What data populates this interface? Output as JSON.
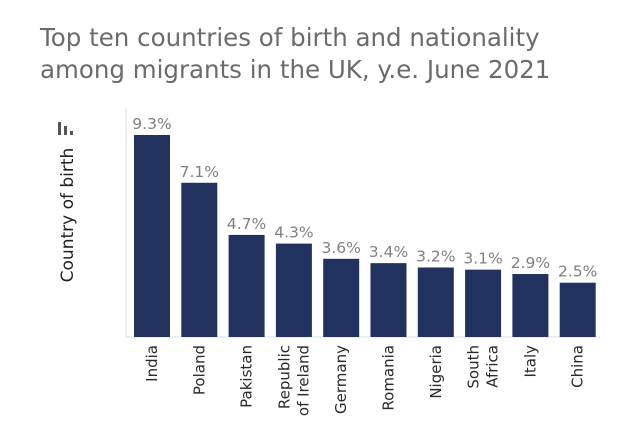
{
  "header": {
    "title": "Top ten countries of birth and nationality among migrants in the UK, y.e. June 2021"
  },
  "chart_data": {
    "type": "bar",
    "title": "Top ten countries of birth and nationality among migrants in the UK, y.e. June 2021",
    "ylabel": "Country of birth",
    "xlabel": "",
    "categories": [
      "India",
      "Poland",
      "Pakistan",
      "Republic of Ireland",
      "Germany",
      "Romania",
      "Nigeria",
      "South Africa",
      "Italy",
      "China"
    ],
    "category_lines": [
      [
        "India"
      ],
      [
        "Poland"
      ],
      [
        "Pakistan"
      ],
      [
        "Republic",
        "of Ireland"
      ],
      [
        "Germany"
      ],
      [
        "Romania"
      ],
      [
        "Nigeria"
      ],
      [
        "South",
        "Africa"
      ],
      [
        "Italy"
      ],
      [
        "China"
      ]
    ],
    "values": [
      9.3,
      7.1,
      4.7,
      4.3,
      3.6,
      3.4,
      3.2,
      3.1,
      2.9,
      2.5
    ],
    "value_labels": [
      "9.3%",
      "7.1%",
      "4.7%",
      "4.3%",
      "3.6%",
      "3.4%",
      "3.2%",
      "3.1%",
      "2.9%",
      "2.5%"
    ],
    "unit": "%",
    "ylim": [
      0,
      9.3
    ],
    "bar_color": "#21325e",
    "grid": false,
    "legend": "none"
  }
}
